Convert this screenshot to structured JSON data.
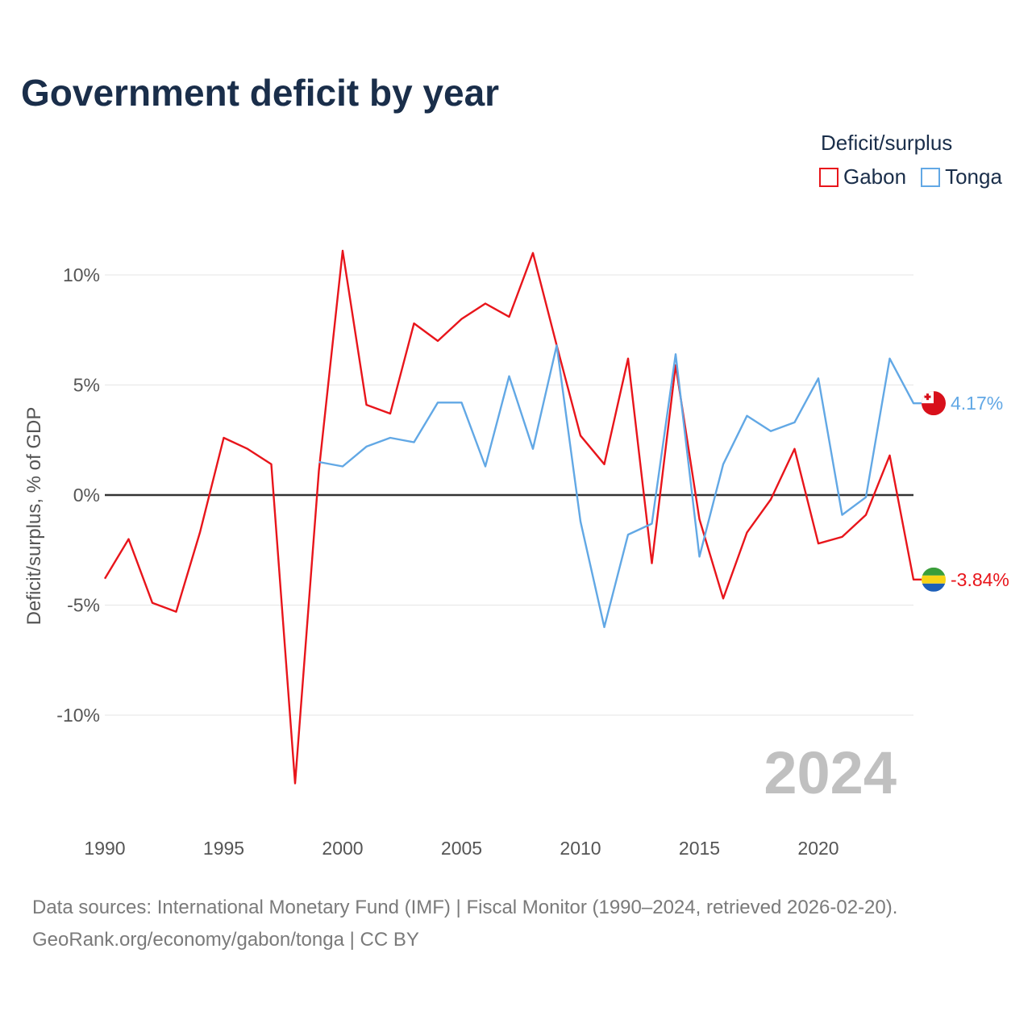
{
  "title": "Government deficit by year",
  "legend": {
    "title": "Deficit/surplus",
    "items": [
      {
        "name": "Gabon",
        "color": "#e8151b"
      },
      {
        "name": "Tonga",
        "color": "#62a8e5"
      }
    ]
  },
  "footer": {
    "line1": "Data sources: International Monetary Fund (IMF) | Fiscal Monitor (1990–2024, retrieved 2026-02-20).",
    "line2": "GeoRank.org/economy/gabon/tonga | CC BY"
  },
  "chart_data": {
    "type": "line",
    "title": "Government deficit by year",
    "xlabel": "",
    "ylabel": "Deficit/surplus, % of GDP",
    "xlim": [
      1990,
      2024
    ],
    "ylim": [
      -14.5,
      12
    ],
    "yticks": [
      10,
      5,
      0,
      -5,
      -10
    ],
    "ytick_labels": [
      "10%",
      "5%",
      "0%",
      "-5%",
      "-10%"
    ],
    "xticks": [
      1990,
      1995,
      2000,
      2005,
      2010,
      2015,
      2020
    ],
    "xtick_labels": [
      "1990",
      "1995",
      "2000",
      "2005",
      "2010",
      "2015",
      "2020"
    ],
    "watermark_year": "2024",
    "series": [
      {
        "name": "Gabon",
        "color": "#e8151b",
        "end_label": "-3.84%",
        "flag": "gabon",
        "x": [
          1990,
          1991,
          1992,
          1993,
          1994,
          1995,
          1996,
          1997,
          1998,
          1999,
          2000,
          2001,
          2002,
          2003,
          2004,
          2005,
          2006,
          2007,
          2008,
          2009,
          2010,
          2011,
          2012,
          2013,
          2014,
          2015,
          2016,
          2017,
          2018,
          2019,
          2020,
          2021,
          2022,
          2023,
          2024
        ],
        "values": [
          -3.8,
          -2.0,
          -4.9,
          -5.3,
          -1.7,
          2.6,
          2.1,
          1.4,
          -13.1,
          1.1,
          11.1,
          4.1,
          3.7,
          7.8,
          7.0,
          8.0,
          8.7,
          8.1,
          11.0,
          6.8,
          2.7,
          1.4,
          6.2,
          -3.1,
          5.9,
          -1.1,
          -4.7,
          -1.7,
          -0.2,
          2.1,
          -2.2,
          -1.9,
          -0.9,
          1.8,
          -3.84
        ]
      },
      {
        "name": "Tonga",
        "color": "#62a8e5",
        "end_label": "4.17%",
        "flag": "tonga",
        "x": [
          1999,
          2000,
          2001,
          2002,
          2003,
          2004,
          2005,
          2006,
          2007,
          2008,
          2009,
          2010,
          2011,
          2012,
          2013,
          2014,
          2015,
          2016,
          2017,
          2018,
          2019,
          2020,
          2021,
          2022,
          2023,
          2024
        ],
        "values": [
          1.5,
          1.3,
          2.2,
          2.6,
          2.4,
          4.2,
          4.2,
          1.3,
          5.4,
          2.1,
          6.8,
          -1.2,
          -6.0,
          -1.8,
          -1.3,
          6.4,
          -2.8,
          1.4,
          3.6,
          2.9,
          3.3,
          5.3,
          -0.9,
          -0.1,
          6.2,
          4.17
        ]
      }
    ]
  }
}
